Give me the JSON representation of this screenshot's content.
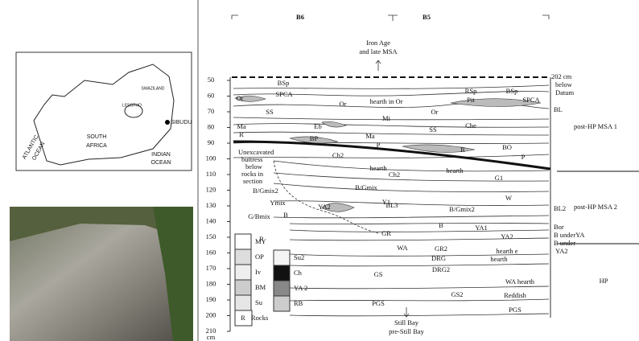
{
  "map": {
    "labels": [
      "SOUTH",
      "AFRICA",
      "ATLANTIC",
      "OCEAN",
      "INDIAN",
      "OCEAN",
      "SIBUDU",
      "SWAZILAND",
      "LESOTHO"
    ]
  },
  "section": {
    "columns": [
      "B6",
      "B5"
    ],
    "top_note": [
      "Iron Age",
      "and late MSA"
    ],
    "bottom_note": [
      "Still Bay",
      "pre-Still Bay"
    ],
    "datum": [
      "202 cm",
      "below",
      "Datum"
    ],
    "depth_ticks": [
      50,
      60,
      70,
      80,
      90,
      100,
      110,
      120,
      130,
      140,
      150,
      160,
      170,
      180,
      190,
      200,
      210
    ],
    "depth_unit": "cm",
    "phases": [
      "post-HP MSA 1",
      "post-HP MSA 2",
      "HP"
    ],
    "right_labels": [
      "BL",
      "BL2",
      "Bor",
      "B underYA",
      "B under",
      "YA2"
    ],
    "units": [
      "BSp",
      "SPCA",
      "Or",
      "Or",
      "hearth in Or",
      "RSp",
      "Pit",
      "BSp",
      "SPCA",
      "Or",
      "SS",
      "Mi",
      "Che",
      "SS",
      "Ma",
      "R",
      "Eb",
      "Ma",
      "BP",
      "P",
      "R",
      "BO",
      "P",
      "Ch2",
      "hearth",
      "hearth",
      "Ch2",
      "G1",
      "B/Gmix2",
      "Ymix",
      "B/Gmix",
      "Y1",
      "W",
      "G/Bmix",
      "B",
      "YA2",
      "BL3",
      "B/Gmix2",
      "R",
      "B",
      "YA1",
      "GR",
      "YA2",
      "WA",
      "GR2",
      "hearth e",
      "DRG",
      "hearth",
      "DRG2",
      "GS",
      "WA hearth",
      "Reddish",
      "GS2",
      "PGS",
      "PGS"
    ],
    "buttress_note": [
      "Unexcavated",
      "buttress",
      "below",
      "rocks in",
      "section"
    ],
    "legend": [
      "MY",
      "OP",
      "Iv",
      "BM",
      "Su",
      "R",
      "Rocks",
      "Su2",
      "Ch",
      "YA 2",
      "RB"
    ]
  }
}
